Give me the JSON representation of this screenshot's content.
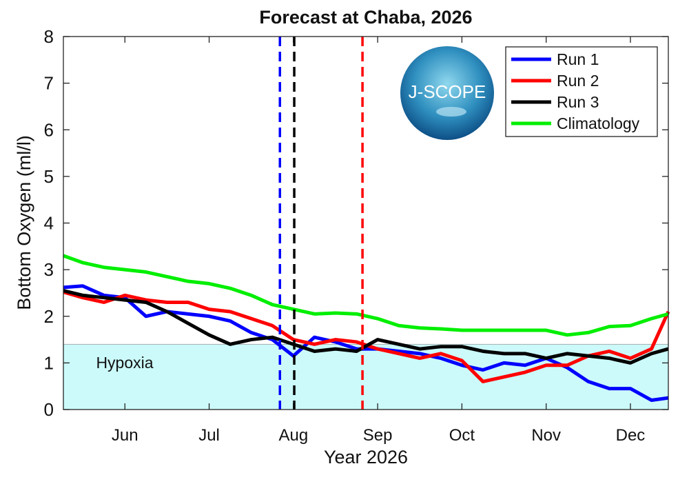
{
  "chart_data": {
    "type": "line",
    "title": "Forecast at Chaba, 2026",
    "xlabel": "Year 2026",
    "ylabel": "Bottom Oxygen (ml/l)",
    "logo_text": "J-SCOPE",
    "x": [
      5.27,
      5.5,
      5.75,
      6,
      6.25,
      6.5,
      6.75,
      7,
      7.25,
      7.5,
      7.75,
      8,
      8.25,
      8.5,
      8.75,
      9,
      9.25,
      9.5,
      9.75,
      10,
      10.25,
      10.5,
      10.75,
      11,
      11.25,
      11.5,
      11.75,
      12,
      12.25,
      12.45
    ],
    "series": [
      {
        "name": "Run 1",
        "color": "#0000ff",
        "values": [
          2.62,
          2.65,
          2.45,
          2.4,
          2.0,
          2.1,
          2.05,
          2.0,
          1.9,
          1.65,
          1.5,
          1.15,
          1.55,
          1.45,
          1.3,
          1.3,
          1.25,
          1.2,
          1.1,
          0.95,
          0.85,
          1.0,
          0.95,
          1.1,
          0.9,
          0.6,
          0.45,
          0.45,
          0.2,
          0.25
        ]
      },
      {
        "name": "Run 2",
        "color": "#ff0000",
        "values": [
          2.52,
          2.4,
          2.3,
          2.45,
          2.35,
          2.3,
          2.3,
          2.15,
          2.1,
          1.95,
          1.8,
          1.5,
          1.4,
          1.5,
          1.45,
          1.3,
          1.2,
          1.1,
          1.2,
          1.05,
          0.6,
          0.7,
          0.8,
          0.95,
          0.95,
          1.15,
          1.25,
          1.1,
          1.3,
          2.1
        ]
      },
      {
        "name": "Run 3",
        "color": "#000000",
        "values": [
          2.55,
          2.45,
          2.4,
          2.35,
          2.3,
          2.1,
          1.85,
          1.6,
          1.4,
          1.5,
          1.55,
          1.4,
          1.25,
          1.3,
          1.25,
          1.5,
          1.4,
          1.3,
          1.35,
          1.35,
          1.25,
          1.2,
          1.2,
          1.1,
          1.2,
          1.15,
          1.1,
          1.0,
          1.2,
          1.3
        ]
      },
      {
        "name": "Climatology",
        "color": "#00ee00",
        "values": [
          3.3,
          3.15,
          3.05,
          3.0,
          2.95,
          2.85,
          2.75,
          2.7,
          2.6,
          2.45,
          2.25,
          2.15,
          2.05,
          2.07,
          2.05,
          1.95,
          1.8,
          1.75,
          1.73,
          1.7,
          1.7,
          1.7,
          1.7,
          1.7,
          1.6,
          1.65,
          1.78,
          1.8,
          1.95,
          2.05
        ]
      }
    ],
    "vlines": [
      {
        "x": 7.84,
        "color": "#0000ff"
      },
      {
        "x": 8.01,
        "color": "#000000"
      },
      {
        "x": 8.82,
        "color": "#ff0000"
      }
    ],
    "hypoxia": {
      "label": "Hypoxia",
      "threshold": 1.4,
      "color": "#ccfafa"
    },
    "xlim": [
      5.27,
      12.45
    ],
    "xticks": [
      {
        "value": 6,
        "label": "Jun"
      },
      {
        "value": 7,
        "label": "Jul"
      },
      {
        "value": 8,
        "label": "Aug"
      },
      {
        "value": 9,
        "label": "Sep"
      },
      {
        "value": 10,
        "label": "Oct"
      },
      {
        "value": 11,
        "label": "Nov"
      },
      {
        "value": 12,
        "label": "Dec"
      }
    ],
    "ylim": [
      0,
      8
    ],
    "yticks": [
      0,
      1,
      2,
      3,
      4,
      5,
      6,
      7,
      8
    ],
    "legend": "top-right",
    "grid": false
  }
}
